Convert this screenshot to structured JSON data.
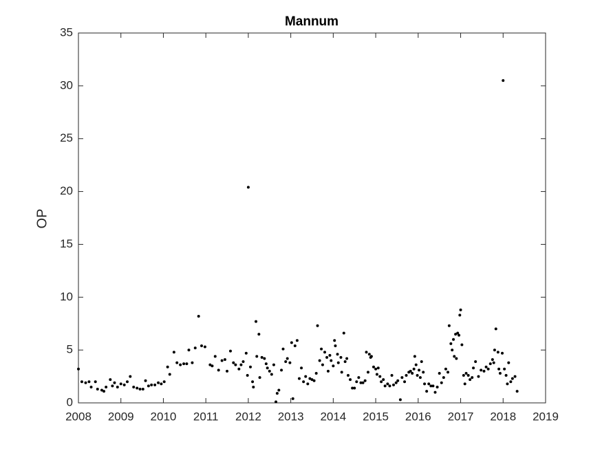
{
  "chart_data": {
    "type": "scatter",
    "title": "Mannum",
    "y_label": "OP",
    "color": "#000000",
    "xlim": [
      2008,
      2019
    ],
    "xticks": [
      2008,
      2009,
      2010,
      2011,
      2012,
      2013,
      2014,
      2015,
      2016,
      2017,
      2018,
      2019
    ],
    "ylim": [
      0,
      35
    ],
    "yticks": [
      0,
      5,
      10,
      15,
      20,
      25,
      30,
      35
    ],
    "x": [
      2008.0,
      2008.08,
      2008.17,
      2008.25,
      2008.3,
      2008.4,
      2008.45,
      2008.55,
      2008.6,
      2008.65,
      2008.75,
      2008.8,
      2008.85,
      2008.92,
      2009.0,
      2009.08,
      2009.15,
      2009.22,
      2009.3,
      2009.38,
      2009.45,
      2009.52,
      2009.58,
      2009.65,
      2009.72,
      2009.8,
      2009.88,
      2009.95,
      2010.02,
      2010.1,
      2010.15,
      2010.25,
      2010.32,
      2010.4,
      2010.48,
      2010.55,
      2010.6,
      2010.68,
      2010.75,
      2010.83,
      2010.9,
      2010.98,
      2011.1,
      2011.15,
      2011.22,
      2011.3,
      2011.38,
      2011.45,
      2011.5,
      2011.58,
      2011.65,
      2011.7,
      2011.78,
      2011.83,
      2011.88,
      2011.95,
      2011.98,
      2012.0,
      2012.05,
      2012.1,
      2012.12,
      2012.18,
      2012.2,
      2012.25,
      2012.27,
      2012.32,
      2012.38,
      2012.42,
      2012.45,
      2012.5,
      2012.55,
      2012.6,
      2012.65,
      2012.68,
      2012.72,
      2012.78,
      2012.82,
      2012.88,
      2012.92,
      2012.98,
      2013.02,
      2013.05,
      2013.1,
      2013.15,
      2013.2,
      2013.25,
      2013.3,
      2013.35,
      2013.4,
      2013.45,
      2013.5,
      2013.55,
      2013.6,
      2013.63,
      2013.68,
      2013.72,
      2013.75,
      2013.8,
      2013.85,
      2013.88,
      2013.92,
      2013.95,
      2014.0,
      2014.03,
      2014.05,
      2014.1,
      2014.12,
      2014.18,
      2014.2,
      2014.25,
      2014.28,
      2014.32,
      2014.35,
      2014.4,
      2014.45,
      2014.5,
      2014.55,
      2014.6,
      2014.65,
      2014.7,
      2014.75,
      2014.78,
      2014.82,
      2014.85,
      2014.88,
      2014.9,
      2014.95,
      2015.0,
      2015.03,
      2015.06,
      2015.1,
      2015.13,
      2015.18,
      2015.22,
      2015.28,
      2015.33,
      2015.38,
      2015.42,
      2015.48,
      2015.52,
      2015.58,
      2015.62,
      2015.68,
      2015.72,
      2015.78,
      2015.82,
      2015.86,
      2015.9,
      2015.92,
      2015.95,
      2015.98,
      2016.02,
      2016.05,
      2016.08,
      2016.12,
      2016.15,
      2016.2,
      2016.25,
      2016.3,
      2016.35,
      2016.4,
      2016.45,
      2016.5,
      2016.55,
      2016.6,
      2016.65,
      2016.7,
      2016.73,
      2016.77,
      2016.8,
      2016.83,
      2016.85,
      2016.88,
      2016.9,
      2016.93,
      2016.96,
      2016.98,
      2017.0,
      2017.03,
      2017.07,
      2017.1,
      2017.13,
      2017.18,
      2017.22,
      2017.27,
      2017.3,
      2017.35,
      2017.42,
      2017.48,
      2017.55,
      2017.6,
      2017.65,
      2017.7,
      2017.75,
      2017.78,
      2017.8,
      2017.83,
      2017.88,
      2017.9,
      2017.93,
      2017.98,
      2018.0,
      2018.03,
      2018.07,
      2018.1,
      2018.13,
      2018.18,
      2018.22,
      2018.28,
      2018.33
    ],
    "values": [
      3.2,
      2.0,
      1.9,
      2.0,
      1.5,
      2.0,
      1.3,
      1.2,
      1.1,
      1.5,
      2.2,
      1.6,
      1.9,
      1.5,
      1.8,
      1.7,
      2.0,
      2.5,
      1.5,
      1.4,
      1.3,
      1.3,
      2.1,
      1.6,
      1.7,
      1.7,
      1.9,
      1.8,
      2.0,
      3.4,
      2.7,
      4.8,
      3.8,
      3.6,
      3.7,
      3.7,
      5.0,
      3.8,
      5.2,
      8.2,
      5.4,
      5.3,
      3.6,
      3.5,
      4.4,
      3.1,
      4.0,
      4.1,
      3.0,
      4.9,
      3.8,
      3.6,
      3.2,
      3.6,
      3.9,
      4.7,
      2.6,
      20.4,
      3.4,
      2.0,
      1.5,
      7.7,
      4.4,
      6.5,
      2.4,
      4.3,
      4.2,
      3.7,
      3.3,
      3.0,
      2.7,
      3.6,
      0.1,
      0.9,
      1.2,
      3.1,
      5.1,
      3.9,
      4.2,
      3.8,
      5.7,
      0.4,
      5.4,
      5.9,
      2.3,
      3.3,
      2.0,
      2.5,
      1.8,
      2.3,
      2.2,
      2.1,
      2.8,
      7.3,
      4.0,
      5.1,
      3.6,
      4.8,
      4.3,
      3.0,
      4.5,
      4.0,
      3.5,
      5.9,
      5.4,
      4.6,
      3.8,
      4.3,
      2.9,
      6.6,
      3.9,
      4.2,
      2.6,
      2.2,
      1.4,
      1.4,
      2.0,
      2.4,
      1.9,
      1.9,
      2.1,
      4.8,
      2.9,
      4.6,
      4.3,
      4.4,
      3.4,
      3.2,
      2.7,
      3.3,
      2.5,
      2.0,
      2.2,
      1.6,
      1.8,
      1.6,
      2.6,
      1.7,
      1.9,
      2.1,
      0.3,
      2.4,
      2.0,
      2.6,
      2.9,
      3.0,
      2.8,
      3.2,
      4.4,
      3.6,
      2.6,
      3.1,
      2.4,
      3.9,
      2.9,
      1.8,
      1.1,
      1.8,
      1.6,
      1.6,
      1.0,
      1.5,
      2.8,
      1.9,
      2.4,
      3.2,
      2.9,
      7.3,
      5.6,
      5.0,
      6.0,
      4.4,
      6.5,
      4.2,
      6.6,
      6.4,
      8.3,
      8.8,
      5.5,
      2.6,
      1.8,
      2.8,
      2.6,
      2.2,
      2.4,
      3.3,
      3.9,
      2.5,
      3.1,
      3.0,
      3.4,
      3.2,
      3.7,
      4.1,
      3.8,
      5.0,
      7.0,
      4.8,
      3.2,
      2.8,
      4.7,
      30.5,
      3.2,
      2.6,
      1.8,
      3.8,
      2.0,
      2.3,
      2.5,
      1.1
    ]
  }
}
